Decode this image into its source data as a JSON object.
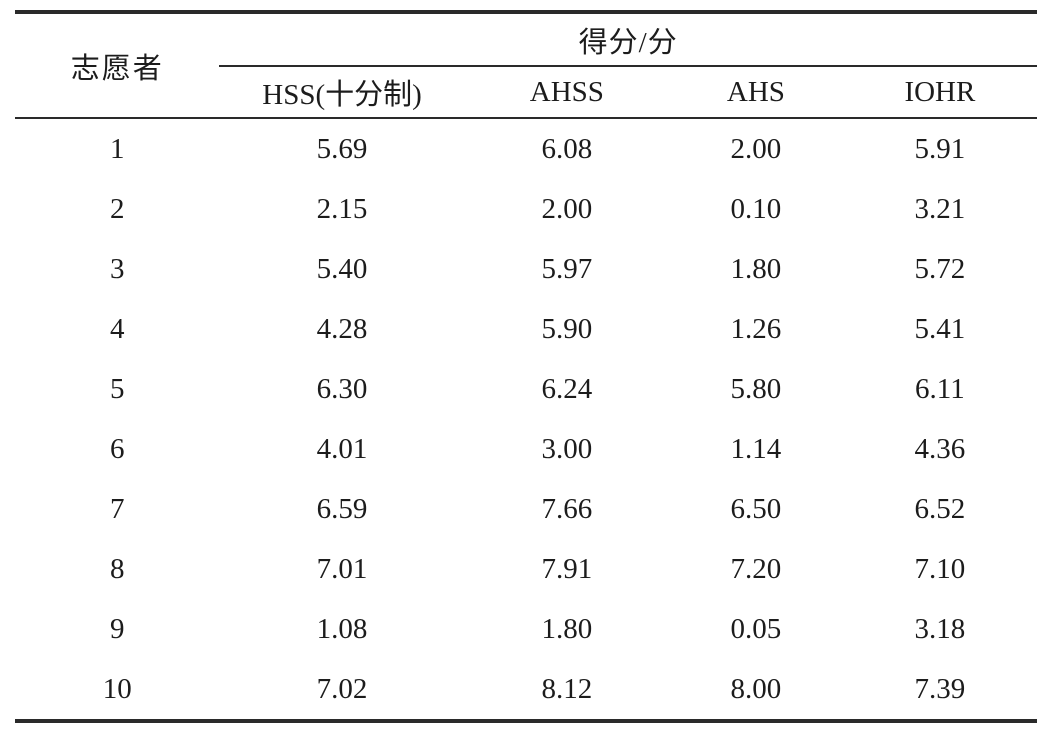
{
  "page": {
    "background_color": "#ffffff",
    "text_color": "#1c1c1c",
    "rule_color": "#2a2a2a"
  },
  "table": {
    "row_header": "志愿者",
    "group_header": "得分/分",
    "sub_headers": [
      "HSS(十分制)",
      "AHSS",
      "AHS",
      "IOHR"
    ],
    "rows": [
      [
        "1",
        "5.69",
        "6.08",
        "2.00",
        "5.91"
      ],
      [
        "2",
        "2.15",
        "2.00",
        "0.10",
        "3.21"
      ],
      [
        "3",
        "5.40",
        "5.97",
        "1.80",
        "5.72"
      ],
      [
        "4",
        "4.28",
        "5.90",
        "1.26",
        "5.41"
      ],
      [
        "5",
        "6.30",
        "6.24",
        "5.80",
        "6.11"
      ],
      [
        "6",
        "4.01",
        "3.00",
        "1.14",
        "4.36"
      ],
      [
        "7",
        "6.59",
        "7.66",
        "6.50",
        "6.52"
      ],
      [
        "8",
        "7.01",
        "7.91",
        "7.20",
        "7.10"
      ],
      [
        "9",
        "1.08",
        "1.80",
        "0.05",
        "3.18"
      ],
      [
        "10",
        "7.02",
        "8.12",
        "8.00",
        "7.39"
      ]
    ]
  },
  "chart_data": {
    "type": "table",
    "title": "",
    "columns": [
      "志愿者",
      "HSS(十分制)",
      "AHSS",
      "AHS",
      "IOHR"
    ],
    "group_header": "得分/分",
    "rows": [
      [
        1,
        5.69,
        6.08,
        2.0,
        5.91
      ],
      [
        2,
        2.15,
        2.0,
        0.1,
        3.21
      ],
      [
        3,
        5.4,
        5.97,
        1.8,
        5.72
      ],
      [
        4,
        4.28,
        5.9,
        1.26,
        5.41
      ],
      [
        5,
        6.3,
        6.24,
        5.8,
        6.11
      ],
      [
        6,
        4.01,
        3.0,
        1.14,
        4.36
      ],
      [
        7,
        6.59,
        7.66,
        6.5,
        6.52
      ],
      [
        8,
        7.01,
        7.91,
        7.2,
        7.1
      ],
      [
        9,
        1.08,
        1.8,
        0.05,
        3.18
      ],
      [
        10,
        7.02,
        8.12,
        8.0,
        7.39
      ]
    ]
  }
}
